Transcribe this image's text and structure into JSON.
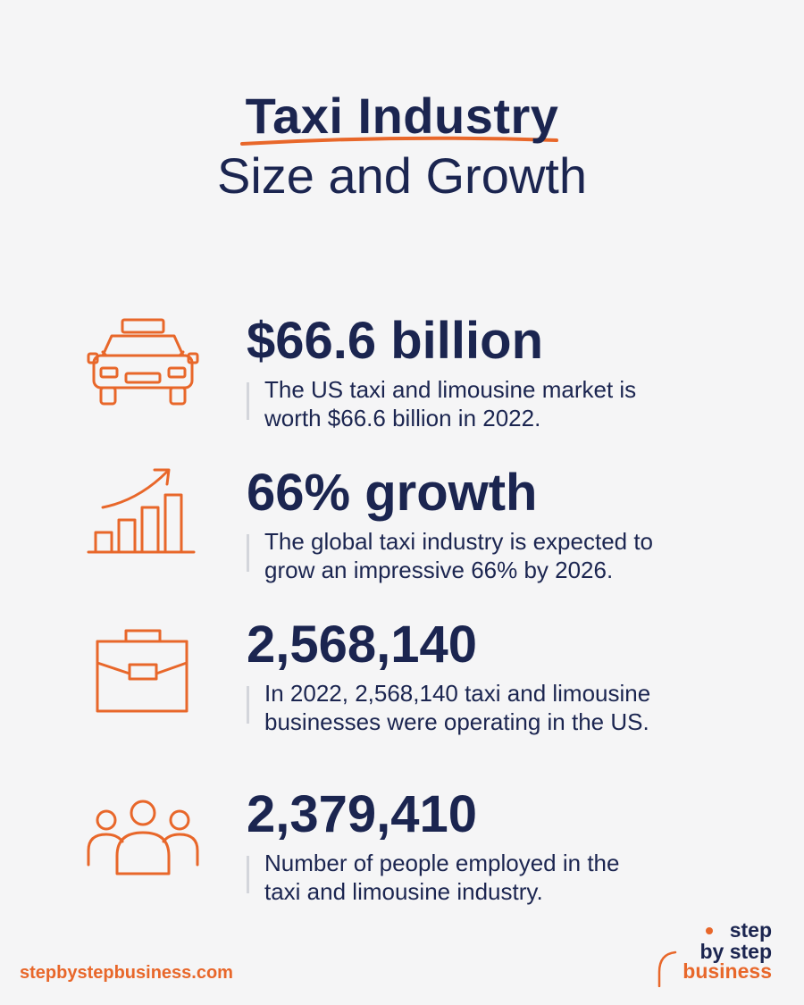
{
  "header": {
    "title": "Taxi Industry",
    "subtitle": "Size and Growth"
  },
  "stats": [
    {
      "icon": "taxi-icon",
      "value": "$66.6 billion",
      "desc_line1": "The US taxi and limousine market is",
      "desc_line2": "worth $66.6 billion in 2022."
    },
    {
      "icon": "growth-chart-icon",
      "value": "66% growth",
      "desc_line1": "The global taxi industry is expected to",
      "desc_line2": "grow an impressive 66% by 2026."
    },
    {
      "icon": "briefcase-icon",
      "value": "2,568,140",
      "desc_line1": "In 2022, 2,568,140 taxi and limousine",
      "desc_line2": "businesses were operating in the US."
    },
    {
      "icon": "people-group-icon",
      "value": "2,379,410",
      "desc_line1": "Number of people employed in the",
      "desc_line2": "taxi and limousine industry."
    }
  ],
  "footer": {
    "url": "stepbystepbusiness.com",
    "logo_line1": "step",
    "logo_line2": "by step",
    "logo_line3": "business"
  },
  "colors": {
    "accent": "#e8672a",
    "navy": "#1b2550",
    "background": "#f5f5f6"
  }
}
